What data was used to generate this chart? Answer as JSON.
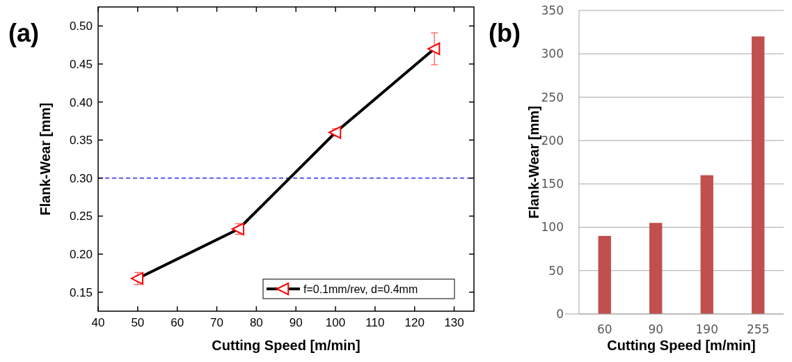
{
  "chart_data": [
    {
      "type": "line",
      "title": "(a)",
      "xlabel": "Cutting Speed [m/min]",
      "ylabel": "Flank-Wear [mm]",
      "x": [
        50,
        75.5,
        100,
        125
      ],
      "xlim": [
        40,
        135
      ],
      "xticks": [
        40,
        50,
        60,
        70,
        80,
        90,
        100,
        110,
        120,
        130
      ],
      "ylim": [
        0.125,
        0.525
      ],
      "yticks": [
        {
          "value": 0.15,
          "label": "0.15"
        },
        {
          "value": 0.2,
          "label": "0.20"
        },
        {
          "value": 0.25,
          "label": "0.25"
        },
        {
          "value": 0.3,
          "label": "0.30"
        },
        {
          "value": 0.35,
          "label": "0.35"
        },
        {
          "value": 0.4,
          "label": "0.40"
        },
        {
          "value": 0.45,
          "label": "0.45"
        },
        {
          "value": 0.5,
          "label": "0.50"
        }
      ],
      "series": [
        {
          "name": "f=0.1mm/rev, d=0.4mm",
          "color": "#000000",
          "values": [
            0.168,
            0.233,
            0.36,
            0.47
          ],
          "errors": [
            0.008,
            0.007,
            0.005,
            0.021
          ]
        }
      ],
      "marker": "triangle",
      "legend": "bottom right",
      "grid": false,
      "ref_lines": [
        {
          "axis": "y",
          "value": 0.3,
          "color": "#0000ff",
          "line_style": "dashed"
        }
      ]
    },
    {
      "type": "bar",
      "title": "(b)",
      "xlabel": "Cutting Speed [m/min]",
      "ylabel": "Flank-Wear [mm]",
      "categories": [
        "60",
        "90",
        "190",
        "255"
      ],
      "values": [
        90,
        105,
        160,
        320
      ],
      "color": "#c0504d",
      "ylim": [
        0,
        350
      ],
      "yticks": [
        0,
        50,
        100,
        150,
        200,
        250,
        300,
        350
      ],
      "grid": "y"
    }
  ]
}
